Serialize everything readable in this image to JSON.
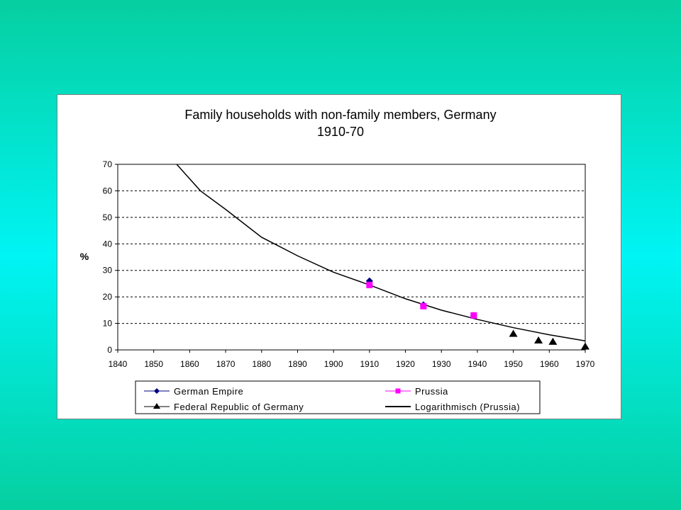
{
  "chart_data": {
    "type": "scatter",
    "title": "Family households with non-family members, Germany",
    "subtitle": "1910-70",
    "xlabel": "",
    "ylabel": "%",
    "xlim": [
      1840,
      1970
    ],
    "ylim": [
      0,
      70
    ],
    "xticks": [
      1840,
      1850,
      1860,
      1870,
      1880,
      1890,
      1900,
      1910,
      1920,
      1930,
      1940,
      1950,
      1960,
      1970
    ],
    "yticks": [
      0,
      10,
      20,
      30,
      40,
      50,
      60,
      70
    ],
    "grid": "horizontal dashed",
    "legend_position": "bottom",
    "series": [
      {
        "name": "German Empire",
        "marker": "diamond",
        "color": "#000080",
        "x": [
          1910,
          1925,
          1939
        ],
        "y": [
          26,
          17,
          13
        ]
      },
      {
        "name": "Prussia",
        "marker": "square",
        "color": "#ff00ff",
        "x": [
          1910,
          1925,
          1939
        ],
        "y": [
          24.5,
          16.5,
          13
        ]
      },
      {
        "name": "Federal Republic of Germany",
        "marker": "triangle",
        "color": "#000000",
        "x": [
          1950,
          1957,
          1961,
          1970
        ],
        "y": [
          6,
          3.5,
          3,
          1.2
        ]
      },
      {
        "name": "Logarithmisch (Prussia)",
        "kind": "trendline",
        "color": "#000000",
        "x": [
          1856.4,
          1863,
          1870,
          1880,
          1890,
          1900,
          1910,
          1920,
          1930,
          1940,
          1950,
          1960,
          1970
        ],
        "y": [
          70,
          60,
          53,
          42.5,
          35.5,
          29.3,
          24.5,
          19.3,
          15,
          11.5,
          8.4,
          5.7,
          3.4
        ]
      }
    ]
  }
}
